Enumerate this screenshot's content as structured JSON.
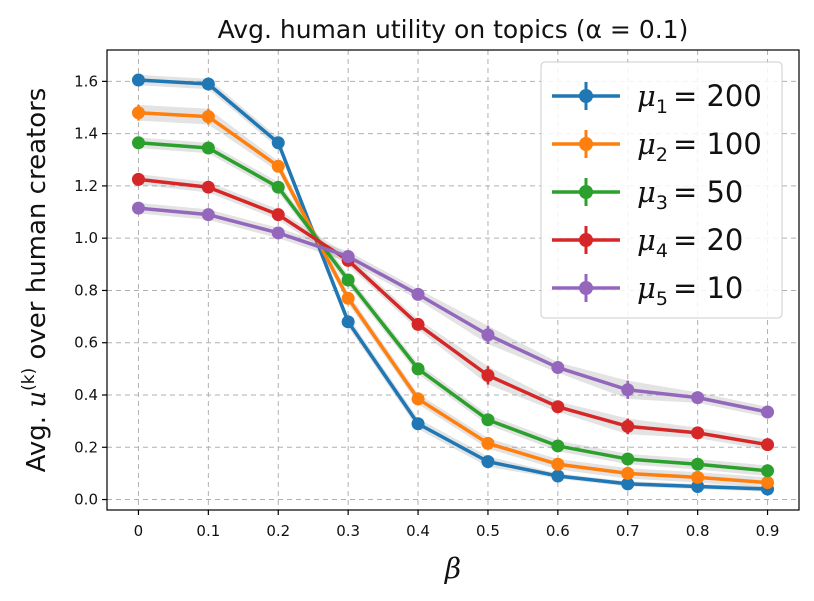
{
  "chart_data": {
    "type": "line",
    "title": "Avg. human utility on topics (α = 0.1)",
    "xlabel": "β",
    "ylabel": "Avg. u^(k) over human creators",
    "ylabel_parts": {
      "prefix": "Avg. ",
      "var": "u",
      "sup": "(k)",
      "suffix": " over human creators"
    },
    "x": [
      0,
      0.1,
      0.2,
      0.3,
      0.4,
      0.5,
      0.6,
      0.7,
      0.8,
      0.9
    ],
    "x_tick_labels": [
      "0",
      "0.1",
      "0.2",
      "0.3",
      "0.4",
      "0.5",
      "0.6",
      "0.7",
      "0.8",
      "0.9"
    ],
    "xlim": [
      -0.045,
      0.945
    ],
    "ylim": [
      -0.04,
      1.72
    ],
    "y_ticks": [
      0.0,
      0.2,
      0.4,
      0.6,
      0.8,
      1.0,
      1.2,
      1.4,
      1.6
    ],
    "y_tick_labels": [
      "0.0",
      "0.2",
      "0.4",
      "0.6",
      "0.8",
      "1.0",
      "1.2",
      "1.4",
      "1.6"
    ],
    "grid": true,
    "legend_position": "top-right",
    "series": [
      {
        "name": "μ1 = 200",
        "label_var": "μ",
        "label_sub": "1",
        "label_value": "= 200",
        "color": "#1f77b4",
        "values": [
          1.605,
          1.59,
          1.365,
          0.68,
          0.29,
          0.145,
          0.09,
          0.06,
          0.05,
          0.04
        ],
        "errors": [
          0.02,
          0.02,
          0.02,
          0.02,
          0.02,
          0.02,
          0.01,
          0.01,
          0.01,
          0.01
        ]
      },
      {
        "name": "μ2 = 100",
        "label_var": "μ",
        "label_sub": "2",
        "label_value": "= 100",
        "color": "#ff7f0e",
        "values": [
          1.48,
          1.465,
          1.275,
          0.77,
          0.385,
          0.215,
          0.135,
          0.1,
          0.085,
          0.065
        ],
        "errors": [
          0.03,
          0.03,
          0.02,
          0.02,
          0.02,
          0.02,
          0.02,
          0.02,
          0.02,
          0.02
        ]
      },
      {
        "name": "μ3 = 50",
        "label_var": "μ",
        "label_sub": "3",
        "label_value": "= 50",
        "color": "#2ca02c",
        "values": [
          1.365,
          1.345,
          1.195,
          0.84,
          0.5,
          0.305,
          0.205,
          0.155,
          0.135,
          0.11
        ],
        "errors": [
          0.02,
          0.02,
          0.02,
          0.02,
          0.02,
          0.02,
          0.02,
          0.02,
          0.02,
          0.02
        ]
      },
      {
        "name": "μ4 = 20",
        "label_var": "μ",
        "label_sub": "4",
        "label_value": "= 20",
        "color": "#d62728",
        "values": [
          1.225,
          1.195,
          1.09,
          0.915,
          0.67,
          0.475,
          0.355,
          0.28,
          0.255,
          0.21
        ],
        "errors": [
          0.02,
          0.02,
          0.02,
          0.02,
          0.02,
          0.035,
          0.02,
          0.03,
          0.02,
          0.02
        ]
      },
      {
        "name": "μ5 = 10",
        "label_var": "μ",
        "label_sub": "5",
        "label_value": "= 10",
        "color": "#9467bd",
        "values": [
          1.115,
          1.09,
          1.02,
          0.93,
          0.785,
          0.63,
          0.505,
          0.42,
          0.39,
          0.335
        ],
        "errors": [
          0.02,
          0.02,
          0.02,
          0.02,
          0.02,
          0.035,
          0.02,
          0.035,
          0.02,
          0.02
        ]
      }
    ]
  }
}
